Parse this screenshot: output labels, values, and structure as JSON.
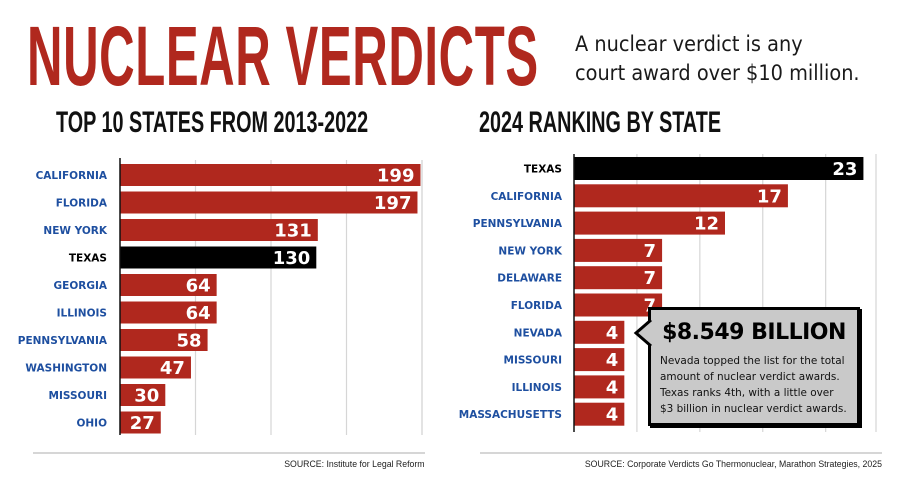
{
  "header": {
    "title": "NUCLEAR VERDICTS",
    "tagline_lines": [
      "A nuclear verdict is any",
      "court award over $10 million."
    ]
  },
  "colors": {
    "accent_red": "#b0281e",
    "highlight_black": "#000000",
    "label_blue": "#1e4fa0",
    "label_highlight": "#000000",
    "gridline": "#d6d6d6",
    "callout_fill": "#c9c9c9"
  },
  "chart_data": [
    {
      "type": "bar",
      "orientation": "horizontal",
      "title": "TOP 10 STATES FROM 2013-2022",
      "categories": [
        "CALIFORNIA",
        "FLORIDA",
        "NEW YORK",
        "TEXAS",
        "GEORGIA",
        "ILLINOIS",
        "PENNSYLVANIA",
        "WASHINGTON",
        "MISSOURI",
        "OHIO"
      ],
      "values": [
        199,
        197,
        131,
        130,
        64,
        64,
        58,
        47,
        30,
        27
      ],
      "highlight": "TEXAS",
      "xlim": [
        0,
        200
      ],
      "grid_step": 50,
      "grid": true,
      "xlabel": "",
      "ylabel": "",
      "source": "SOURCE: Institute for Legal Reform"
    },
    {
      "type": "bar",
      "orientation": "horizontal",
      "title": "2024 RANKING BY STATE",
      "categories": [
        "TEXAS",
        "CALIFORNIA",
        "PENNSYLVANIA",
        "NEW YORK",
        "DELAWARE",
        "FLORIDA",
        "NEVADA",
        "MISSOURI",
        "ILLINOIS",
        "MASSACHUSETTS"
      ],
      "values": [
        23,
        17,
        12,
        7,
        7,
        7,
        4,
        4,
        4,
        4
      ],
      "highlight": "TEXAS",
      "xlim": [
        0,
        24
      ],
      "grid_step": 5,
      "grid": true,
      "xlabel": "",
      "ylabel": "",
      "source": "SOURCE: Corporate Verdicts Go Thermonuclear, Marathon Strategies, 2025",
      "annotation": {
        "target": "NEVADA",
        "headline": "$8.549 BILLION",
        "body_lines": [
          "Nevada topped the list for the total",
          "amount of nuclear verdict awards.",
          "Texas ranks 4th, with a little over",
          "$3 billion in nuclear verdict awards."
        ]
      }
    }
  ]
}
